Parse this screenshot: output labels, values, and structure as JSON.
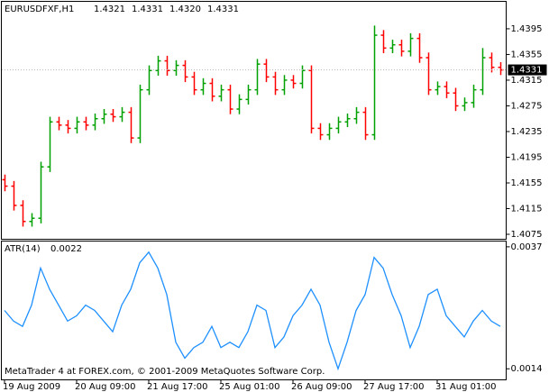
{
  "chart_data": [
    {
      "type": "ohlc",
      "symbol": "EURUSDFXF,H1",
      "header_values": [
        1.4321,
        1.4331,
        {
          "value": 1.432,
          "label": "1.4320"
        },
        1.4331
      ],
      "up_color": "#00a000",
      "down_color": "#ff0000",
      "ylim": [
        1.4068,
        1.4437
      ],
      "yticks": [
        1.4395,
        1.4355,
        1.4315,
        1.4275,
        1.4235,
        1.4195,
        1.4155,
        1.4115,
        1.4075
      ],
      "last_price_label": 1.4331,
      "categories": [
        "19 Aug 2009",
        null,
        null,
        null,
        null,
        null,
        null,
        null,
        "20 Aug 09:00",
        null,
        null,
        null,
        null,
        null,
        null,
        null,
        "21 Aug 17:00",
        null,
        null,
        null,
        null,
        null,
        null,
        null,
        "25 Aug 01:00",
        null,
        null,
        null,
        null,
        null,
        null,
        null,
        "26 Aug 09:00",
        null,
        null,
        null,
        null,
        null,
        null,
        null,
        "27 Aug 17:00",
        null,
        null,
        null,
        null,
        null,
        null,
        null,
        "31 Aug 01:00",
        null,
        null,
        null,
        null,
        null,
        null,
        null
      ],
      "open": [
        1.416,
        1.415,
        1.412,
        1.4095,
        1.41,
        1.418,
        1.425,
        1.4245,
        1.424,
        1.425,
        1.4245,
        1.4255,
        1.4262,
        1.4258,
        1.4265,
        1.4225,
        1.43,
        1.433,
        1.4345,
        1.433,
        1.4338,
        1.432,
        1.43,
        1.431,
        1.429,
        1.43,
        1.427,
        1.4285,
        1.43,
        1.434,
        1.432,
        1.43,
        1.4315,
        1.431,
        1.433,
        1.424,
        1.423,
        1.424,
        1.425,
        1.4255,
        1.4265,
        1.423,
        1.4385,
        1.4365,
        1.437,
        1.436,
        1.438,
        1.435,
        1.43,
        1.4305,
        1.4295,
        1.4275,
        1.428,
        1.43,
        1.435,
        1.4335
      ],
      "high": [
        1.4168,
        1.4158,
        1.4128,
        1.4108,
        1.4188,
        1.4258,
        1.4258,
        1.4253,
        1.4258,
        1.4258,
        1.4263,
        1.427,
        1.427,
        1.4273,
        1.4273,
        1.4308,
        1.4338,
        1.4353,
        1.4353,
        1.4346,
        1.4346,
        1.4328,
        1.4318,
        1.4318,
        1.4308,
        1.4308,
        1.4293,
        1.4308,
        1.4348,
        1.4348,
        1.4328,
        1.4323,
        1.4323,
        1.4338,
        1.4338,
        1.4248,
        1.4248,
        1.4258,
        1.4263,
        1.4273,
        1.4273,
        1.44,
        1.4393,
        1.4378,
        1.4378,
        1.4388,
        1.4388,
        1.4358,
        1.4313,
        1.4313,
        1.4303,
        1.4288,
        1.4308,
        1.4365,
        1.4358,
        1.4343
      ],
      "low": [
        1.4142,
        1.4112,
        1.4087,
        1.4087,
        1.4092,
        1.4172,
        1.4237,
        1.4232,
        1.4232,
        1.4237,
        1.4237,
        1.4247,
        1.425,
        1.425,
        1.4217,
        1.4217,
        1.4292,
        1.4322,
        1.4322,
        1.4322,
        1.4312,
        1.4292,
        1.4292,
        1.4282,
        1.4282,
        1.4262,
        1.4262,
        1.4277,
        1.4292,
        1.4312,
        1.4292,
        1.4292,
        1.4302,
        1.4302,
        1.4232,
        1.4222,
        1.4222,
        1.4232,
        1.4242,
        1.4247,
        1.4222,
        1.4222,
        1.4357,
        1.4357,
        1.4352,
        1.4352,
        1.4342,
        1.4292,
        1.4292,
        1.4287,
        1.4267,
        1.4267,
        1.4272,
        1.4292,
        1.4327,
        1.4323
      ],
      "close": [
        1.415,
        1.412,
        1.4095,
        1.41,
        1.418,
        1.425,
        1.4245,
        1.424,
        1.425,
        1.4245,
        1.4255,
        1.4262,
        1.4258,
        1.4265,
        1.4225,
        1.43,
        1.433,
        1.4345,
        1.433,
        1.4338,
        1.432,
        1.43,
        1.431,
        1.429,
        1.43,
        1.427,
        1.4285,
        1.43,
        1.434,
        1.432,
        1.43,
        1.4315,
        1.431,
        1.433,
        1.424,
        1.423,
        1.424,
        1.425,
        1.4255,
        1.4265,
        1.423,
        1.4385,
        1.4365,
        1.437,
        1.436,
        1.438,
        1.435,
        1.43,
        1.4305,
        1.4295,
        1.4275,
        1.428,
        1.43,
        1.435,
        1.4335,
        1.4331
      ]
    },
    {
      "type": "line",
      "title": "ATR(14)",
      "current_value": 0.0022,
      "color": "#1e90ff",
      "ylim": [
        0.0012,
        0.0038
      ],
      "yticks": [
        0.0037,
        0.0014
      ],
      "values": [
        0.0025,
        0.0023,
        0.0022,
        0.0026,
        0.0033,
        0.0029,
        0.0026,
        0.0023,
        0.0024,
        0.0026,
        0.0025,
        0.0023,
        0.0021,
        0.0026,
        0.0029,
        0.0034,
        0.0036,
        0.0033,
        0.0028,
        0.0019,
        0.0016,
        0.0018,
        0.0019,
        0.0022,
        0.0018,
        0.0019,
        0.0018,
        0.0021,
        0.0026,
        0.0025,
        0.0018,
        0.002,
        0.0024,
        0.0026,
        0.0029,
        0.0026,
        0.0019,
        0.0014,
        0.0019,
        0.0025,
        0.0028,
        0.0035,
        0.0033,
        0.0028,
        0.0024,
        0.0018,
        0.0022,
        0.0028,
        0.0029,
        0.0024,
        0.0022,
        0.002,
        0.0023,
        0.0025,
        0.0023,
        0.0022
      ]
    }
  ],
  "footer": "MetaTrader 4 at FOREX.com, © 2001-2009 MetaQuotes Software Corp."
}
